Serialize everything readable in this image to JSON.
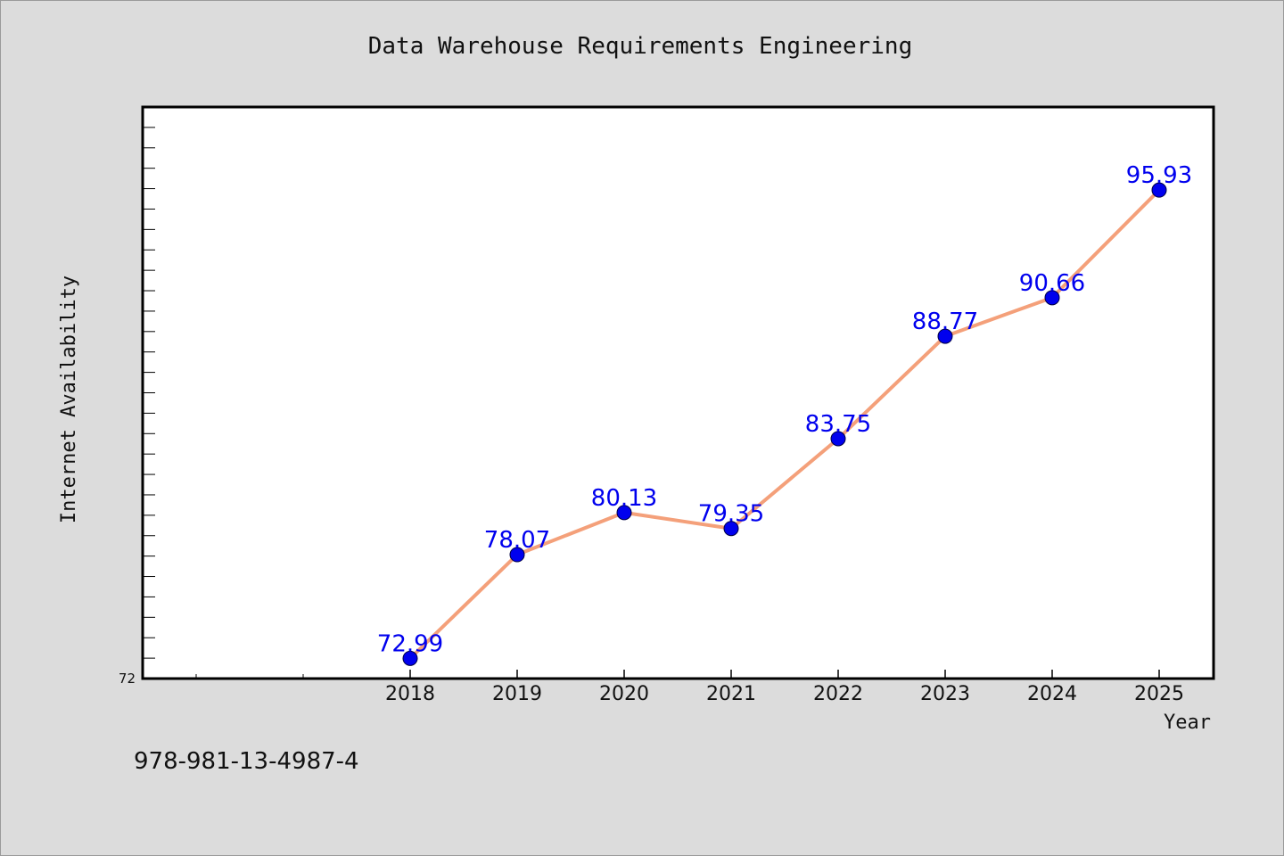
{
  "chart_data": {
    "type": "line",
    "title": "Data Warehouse Requirements Engineering",
    "xlabel": "Year",
    "ylabel": "Internet Availability",
    "categories": [
      "2018",
      "2019",
      "2020",
      "2021",
      "2022",
      "2023",
      "2024",
      "2025"
    ],
    "values": [
      72.99,
      78.07,
      80.13,
      79.35,
      83.75,
      88.77,
      90.66,
      95.93
    ],
    "data_labels": [
      "72.99",
      "78.07",
      "80.13",
      "79.35",
      "83.75",
      "88.77",
      "90.66",
      "95.93"
    ],
    "y_tick_label": "72",
    "ylim": [
      72,
      100
    ],
    "grid": false,
    "legend": "none",
    "line_color": "#f4a07a",
    "marker_color": "#0000ee",
    "label_color": "#0000ee"
  },
  "footer": {
    "isbn": "978-981-13-4987-4"
  }
}
